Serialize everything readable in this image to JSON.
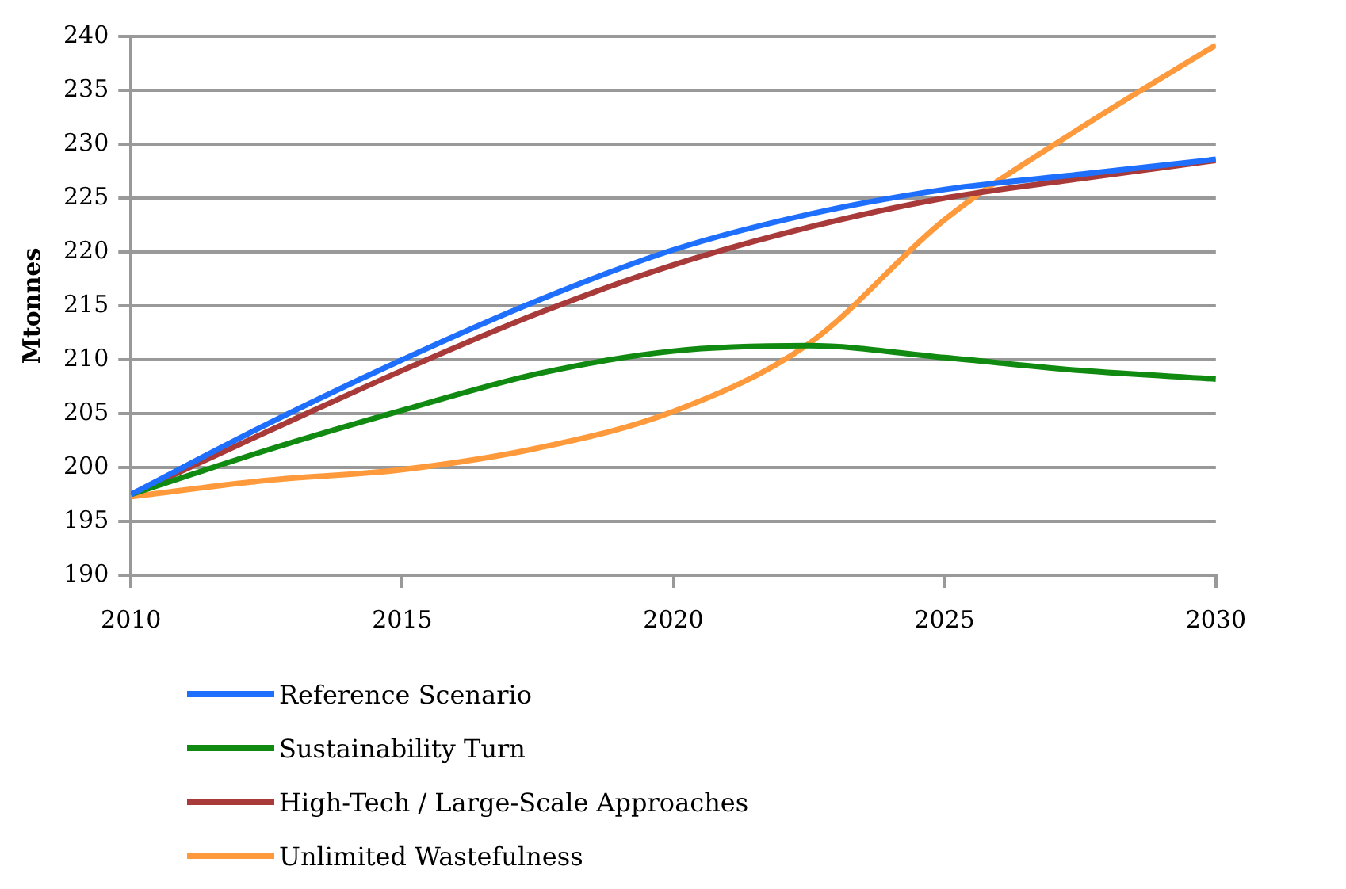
{
  "chart_data": {
    "type": "line",
    "ylabel": "Mtonnes",
    "x": [
      2010,
      2012.5,
      2015,
      2017.5,
      2020,
      2022.5,
      2025,
      2027.5,
      2030
    ],
    "series": [
      {
        "name": "Reference Scenario",
        "color": "#1f6fff",
        "values": [
          197.5,
          204,
          210,
          215.5,
          220.2,
          223.5,
          225.8,
          227.2,
          228.6
        ]
      },
      {
        "name": "Sustainability Turn",
        "color": "#118a11",
        "values": [
          197.5,
          201.6,
          205.3,
          208.7,
          210.8,
          211.3,
          210.2,
          209,
          208.2
        ]
      },
      {
        "name": "High-Tech / Large-Scale Approaches",
        "color": "#a83a3a",
        "values": [
          197.5,
          203.3,
          209,
          214.3,
          218.8,
          222.3,
          225,
          226.8,
          228.5
        ]
      },
      {
        "name": "Unlimited Wastefulness",
        "color": "#ff9a3c",
        "values": [
          197.3,
          198.8,
          199.8,
          201.8,
          205.2,
          211.5,
          223,
          231.5,
          239.2
        ]
      }
    ],
    "xlim": [
      2010,
      2030
    ],
    "xticks": [
      2010,
      2015,
      2020,
      2025,
      2030
    ],
    "ylim": [
      190,
      240
    ],
    "yticks": [
      190,
      195,
      200,
      205,
      210,
      215,
      220,
      225,
      230,
      235,
      240
    ],
    "grid": "y",
    "legend": "bottom",
    "marker": "none",
    "line_style": "solid"
  }
}
